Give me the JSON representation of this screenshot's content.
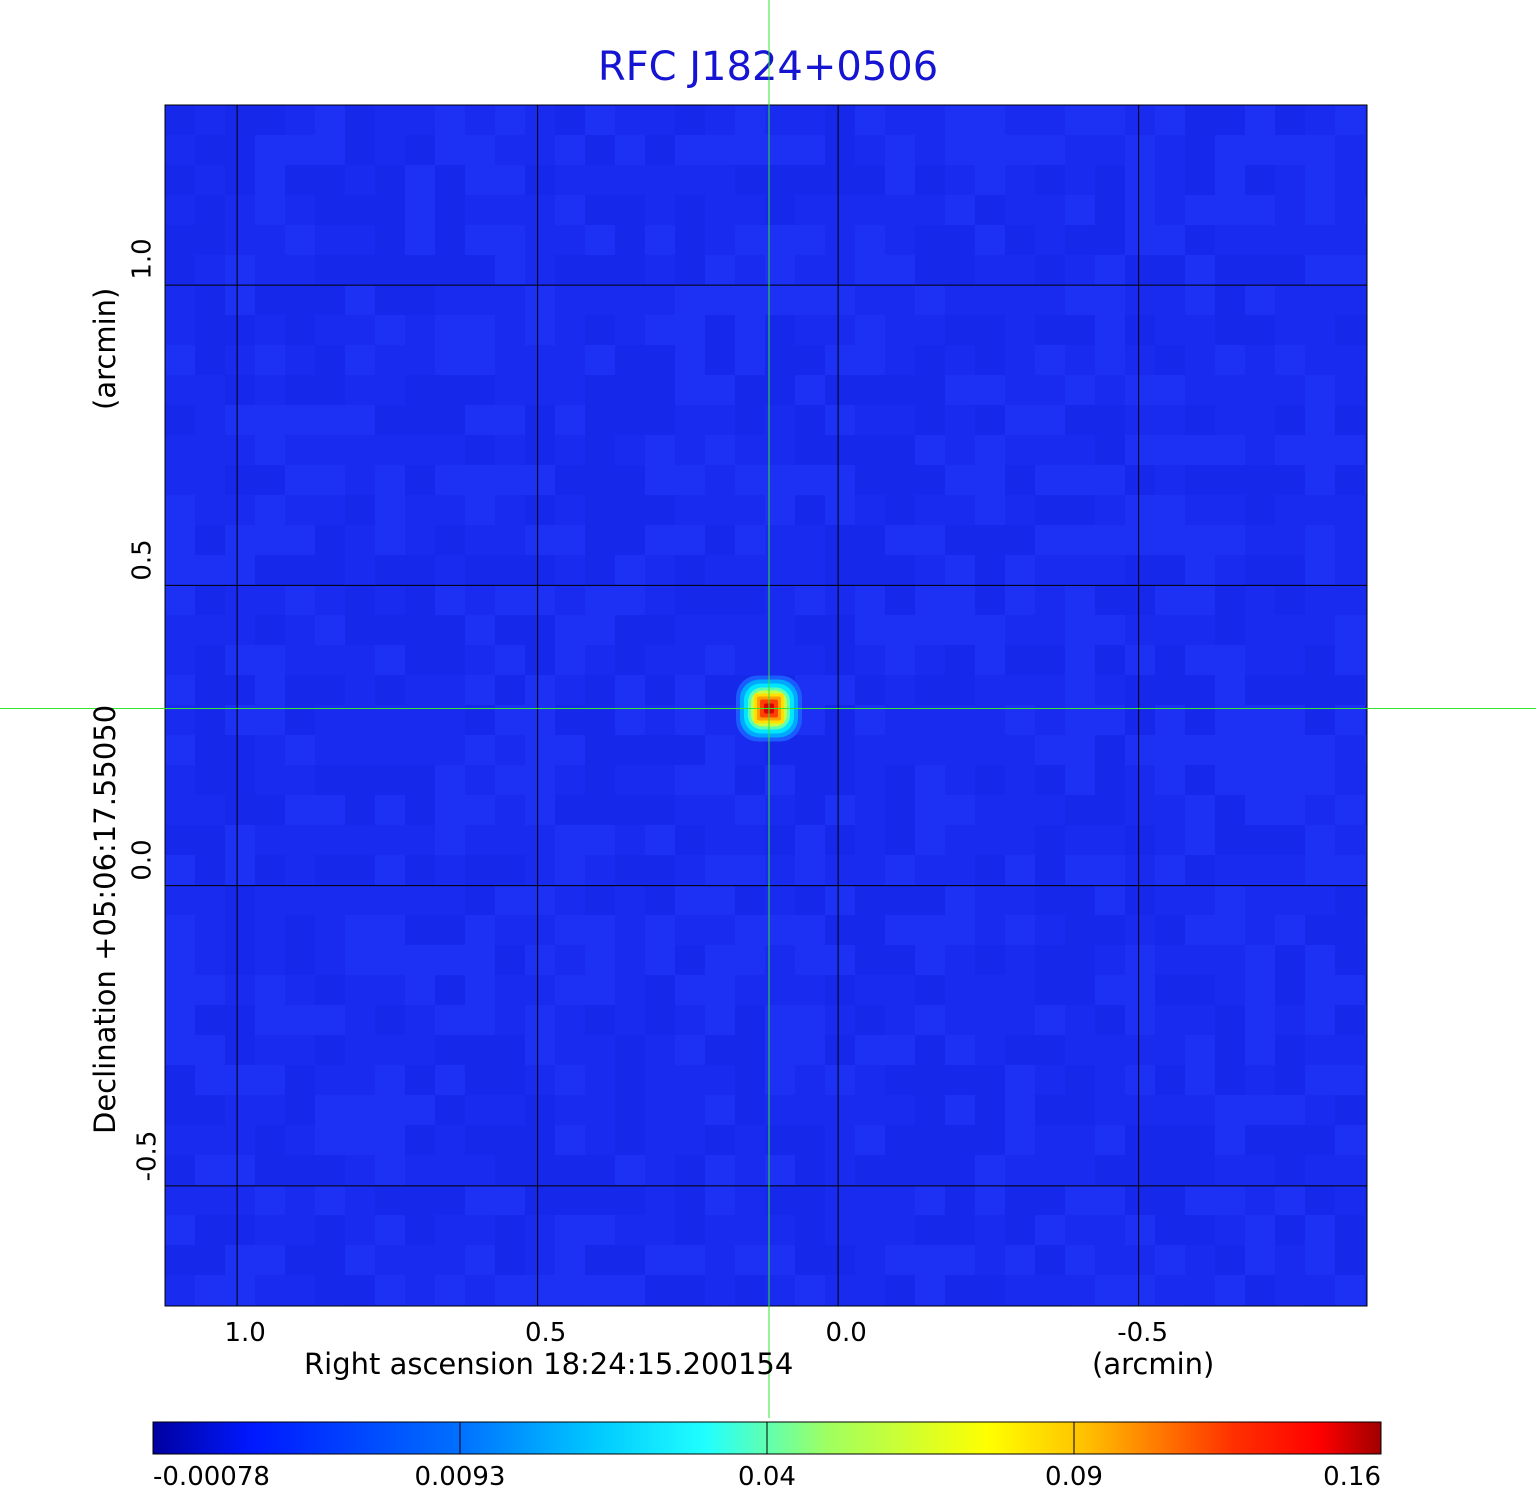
{
  "chart_data": {
    "type": "heatmap",
    "title": "RFC J1824+0506",
    "xlabel": "Right ascension  18:24:15.200154",
    "xunit": "(arcmin)",
    "ylabel": "Declination  +05:06:17.55050",
    "yunit": "(arcmin)",
    "xlim": [
      1.12,
      -0.88
    ],
    "ylim": [
      -0.7,
      1.3
    ],
    "xticks": [
      {
        "value": 1.0,
        "label": "1.0"
      },
      {
        "value": 0.5,
        "label": "0.5"
      },
      {
        "value": 0.0,
        "label": "0.0"
      },
      {
        "value": -0.5,
        "label": "-0.5"
      }
    ],
    "yticks": [
      {
        "value": 1.0,
        "label": "1.0"
      },
      {
        "value": 0.5,
        "label": "0.5"
      },
      {
        "value": 0.0,
        "label": "0.0"
      },
      {
        "value": -0.5,
        "label": "-0.5"
      }
    ],
    "grid": true,
    "crosshair": {
      "x": 0.115,
      "y": 0.295,
      "color": "#32e632"
    },
    "source_peak": {
      "x": 0.115,
      "y": 0.295,
      "peak_value": 0.16
    },
    "colorbar": {
      "colormap": "jet",
      "ticks": [
        {
          "value": -0.00078,
          "label": "-0.00078"
        },
        {
          "value": 0.0093,
          "label": "0.0093"
        },
        {
          "value": 0.04,
          "label": "0.04"
        },
        {
          "value": 0.09,
          "label": "0.09"
        },
        {
          "value": 0.16,
          "label": "0.16"
        }
      ]
    },
    "colors": {
      "title": "#1414d2",
      "background_field": "#1a2cf0",
      "grid": "#000000"
    }
  }
}
